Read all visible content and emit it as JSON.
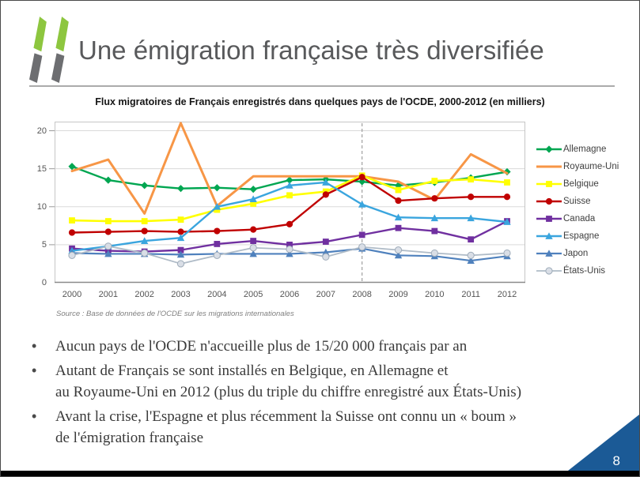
{
  "slide": {
    "title": "Une émigration française très diversifiée",
    "page_number": "8",
    "accent_blue": "#1b5a96",
    "bullet_char": "•"
  },
  "logo": {
    "name": "oecd-chevrons-logo",
    "green": "#8dc63f",
    "gray": "#6d6e71"
  },
  "chart_data": {
    "type": "line",
    "title": "Flux migratoires de Français enregistrés dans quelques pays de l'OCDE, 2000-2012 (en milliers)",
    "source": "Source : Base de données de l'OCDE sur les migrations internationales",
    "x": [
      2000,
      2001,
      2002,
      2003,
      2004,
      2005,
      2006,
      2007,
      2008,
      2009,
      2010,
      2011,
      2012
    ],
    "ylim": [
      0,
      21.2
    ],
    "yticks": [
      0,
      5,
      10,
      15,
      20
    ],
    "grid": true,
    "dashed_vline_x": 2008,
    "legend_position": "right",
    "series": [
      {
        "name": "Allemagne",
        "color": "#00a651",
        "marker": "diamond",
        "line_width": 2.4,
        "values": [
          15.3,
          13.5,
          12.8,
          12.4,
          12.5,
          12.3,
          13.5,
          13.6,
          13.3,
          12.8,
          13.2,
          13.8,
          14.6
        ]
      },
      {
        "name": "Royaume-Uni",
        "color": "#f79646",
        "marker": "none",
        "line_width": 3.0,
        "values": [
          14.7,
          16.2,
          9.1,
          21.0,
          10.1,
          14.0,
          14.0,
          14.0,
          14.0,
          13.3,
          10.9,
          16.9,
          14.4
        ]
      },
      {
        "name": "Belgique",
        "color": "#ffff00",
        "marker": "square",
        "line_width": 2.6,
        "values": [
          8.2,
          8.1,
          8.1,
          8.3,
          9.6,
          10.4,
          11.5,
          12.0,
          14.1,
          12.2,
          13.4,
          13.6,
          13.2
        ]
      },
      {
        "name": "Suisse",
        "color": "#c00000",
        "marker": "circle",
        "line_width": 2.4,
        "values": [
          6.6,
          6.7,
          6.8,
          6.7,
          6.8,
          7.0,
          7.7,
          11.6,
          13.9,
          10.8,
          11.1,
          11.3,
          11.3
        ]
      },
      {
        "name": "Canada",
        "color": "#7030a0",
        "marker": "square",
        "line_width": 2.4,
        "values": [
          4.5,
          4.2,
          4.1,
          4.3,
          5.1,
          5.5,
          5.0,
          5.4,
          6.3,
          7.2,
          6.8,
          5.7,
          8.1
        ]
      },
      {
        "name": "Espagne",
        "color": "#3aa5de",
        "marker": "triangle",
        "line_width": 2.4,
        "values": [
          4.2,
          4.8,
          5.5,
          5.9,
          10.0,
          11.0,
          12.8,
          13.2,
          10.3,
          8.6,
          8.5,
          8.5,
          8.0
        ]
      },
      {
        "name": "Japon",
        "color": "#4f81bd",
        "marker": "triangle",
        "line_width": 2.2,
        "values": [
          3.9,
          3.8,
          3.8,
          3.7,
          3.8,
          3.8,
          3.8,
          4.0,
          4.5,
          3.6,
          3.5,
          2.9,
          3.5
        ]
      },
      {
        "name": "États-Unis",
        "color": "#afbbc7",
        "marker": "circle",
        "line_width": 1.8,
        "marker_fill": "#d9dee6",
        "marker_stroke": "#9facba",
        "values": [
          3.6,
          4.8,
          3.9,
          2.5,
          3.6,
          4.6,
          4.4,
          3.4,
          4.7,
          4.3,
          3.9,
          3.6,
          3.9
        ]
      }
    ]
  },
  "bullets": {
    "items": [
      [
        "Aucun pays de l'OCDE n'accueille plus de 15/20 000 français par an"
      ],
      [
        "Autant de Français se sont installés en Belgique, en Allemagne et",
        "au Royaume-Uni en 2012 (plus du triple du chiffre enregistré aux États-Unis)"
      ],
      [
        "Avant la crise, l'Espagne et plus récemment la Suisse ont connu un « boum »",
        "de l'émigration française"
      ]
    ]
  }
}
